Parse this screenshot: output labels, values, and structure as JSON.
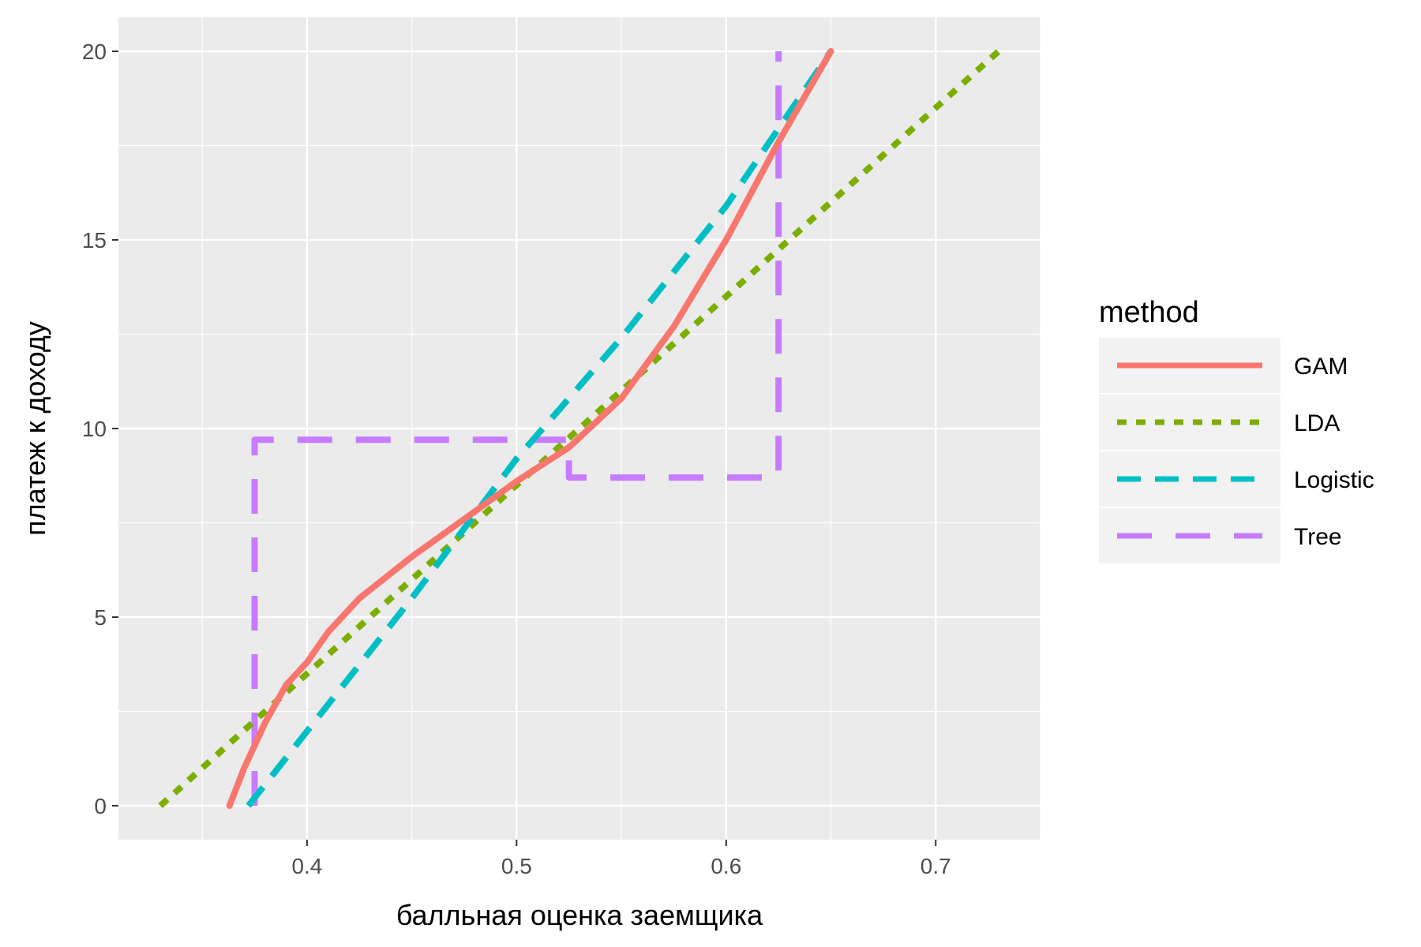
{
  "chart_data": {
    "type": "line",
    "title": "",
    "xlabel": "балльная оценка заемщика",
    "ylabel": "платеж к доходу",
    "xlim": [
      0.31,
      0.75
    ],
    "ylim": [
      -0.9,
      20.9
    ],
    "x_ticks": [
      0.4,
      0.5,
      0.6,
      0.7
    ],
    "x_tick_labels": [
      "0.4",
      "0.5",
      "0.6",
      "0.7"
    ],
    "y_ticks": [
      0,
      5,
      10,
      15,
      20
    ],
    "y_tick_labels": [
      "0",
      "5",
      "10",
      "15",
      "20"
    ],
    "grid": true,
    "legend": {
      "title": "method",
      "position": "right"
    },
    "series": [
      {
        "name": "GAM",
        "color": "#F8766D",
        "line_style": "solid",
        "points": [
          [
            0.363,
            0
          ],
          [
            0.37,
            1.0
          ],
          [
            0.38,
            2.2
          ],
          [
            0.39,
            3.2
          ],
          [
            0.4,
            3.8
          ],
          [
            0.41,
            4.6
          ],
          [
            0.425,
            5.5
          ],
          [
            0.45,
            6.6
          ],
          [
            0.48,
            7.8
          ],
          [
            0.5,
            8.6
          ],
          [
            0.525,
            9.5
          ],
          [
            0.55,
            10.8
          ],
          [
            0.575,
            12.7
          ],
          [
            0.6,
            15.0
          ],
          [
            0.625,
            17.6
          ],
          [
            0.65,
            20.0
          ]
        ]
      },
      {
        "name": "LDA",
        "color": "#7CAE00",
        "line_style": "dotted",
        "points": [
          [
            0.33,
            0
          ],
          [
            0.73,
            20
          ]
        ]
      },
      {
        "name": "Logistic",
        "color": "#00BFC4",
        "line_style": "dashed",
        "points": [
          [
            0.372,
            0
          ],
          [
            0.45,
            5.5
          ],
          [
            0.5,
            9.2
          ],
          [
            0.55,
            12.4
          ],
          [
            0.6,
            15.9
          ],
          [
            0.65,
            20.0
          ]
        ]
      },
      {
        "name": "Tree",
        "color": "#C77CFF",
        "line_style": "longdash",
        "points": [
          [
            0.375,
            0
          ],
          [
            0.375,
            9.7
          ],
          [
            0.525,
            9.7
          ],
          [
            0.525,
            8.7
          ],
          [
            0.625,
            8.7
          ],
          [
            0.625,
            20.0
          ]
        ]
      }
    ]
  }
}
